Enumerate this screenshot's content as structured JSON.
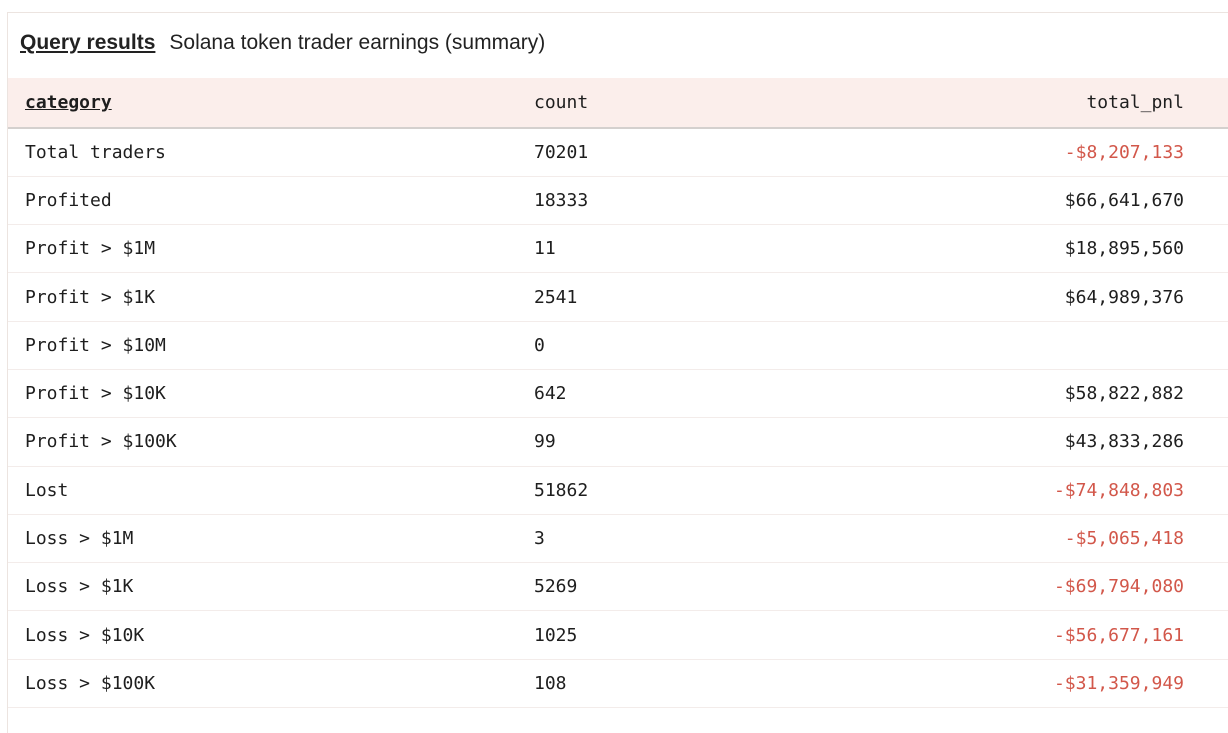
{
  "header": {
    "link": "Query results",
    "title": "Solana token trader earnings (summary)"
  },
  "colors": {
    "negative": "#d2574a",
    "header_bg": "#fbeeeb"
  },
  "table": {
    "columns": [
      "category",
      "count",
      "total_pnl"
    ],
    "rows": [
      {
        "category": "Total traders",
        "count": "70201",
        "total_pnl": "-$8,207,133",
        "negative": true
      },
      {
        "category": "Profited",
        "count": "18333",
        "total_pnl": "$66,641,670",
        "negative": false
      },
      {
        "category": "Profit > $1M",
        "count": "11",
        "total_pnl": "$18,895,560",
        "negative": false
      },
      {
        "category": "Profit > $1K",
        "count": "2541",
        "total_pnl": "$64,989,376",
        "negative": false
      },
      {
        "category": "Profit > $10M",
        "count": "0",
        "total_pnl": "",
        "negative": false
      },
      {
        "category": "Profit > $10K",
        "count": "642",
        "total_pnl": "$58,822,882",
        "negative": false
      },
      {
        "category": "Profit > $100K",
        "count": "99",
        "total_pnl": "$43,833,286",
        "negative": false
      },
      {
        "category": "Lost",
        "count": "51862",
        "total_pnl": "-$74,848,803",
        "negative": true
      },
      {
        "category": "Loss > $1M",
        "count": "3",
        "total_pnl": "-$5,065,418",
        "negative": true
      },
      {
        "category": "Loss > $1K",
        "count": "5269",
        "total_pnl": "-$69,794,080",
        "negative": true
      },
      {
        "category": "Loss > $10K",
        "count": "1025",
        "total_pnl": "-$56,677,161",
        "negative": true
      },
      {
        "category": "Loss > $100K",
        "count": "108",
        "total_pnl": "-$31,359,949",
        "negative": true
      }
    ]
  }
}
